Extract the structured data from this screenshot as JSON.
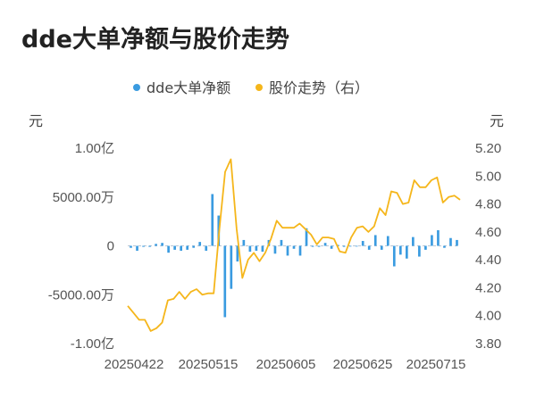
{
  "chart_data": {
    "type": "bar+line",
    "title": "dde大单净额与股价走势",
    "legend": {
      "position": "top-center",
      "items": [
        {
          "name": "dde大单净额",
          "color": "#3a9be0"
        },
        {
          "name": "股价走势（右）",
          "color": "#f5b61b"
        }
      ]
    },
    "y_left": {
      "unit": "元",
      "range": [
        -10000,
        10000
      ],
      "ticks": [
        {
          "value": 10000,
          "label": "1.00亿"
        },
        {
          "value": 5000,
          "label": "5000.00万"
        },
        {
          "value": 0,
          "label": "0"
        },
        {
          "value": -5000,
          "label": "-5000.00万"
        },
        {
          "value": -10000,
          "label": "-1.00亿"
        }
      ]
    },
    "y_right": {
      "unit": "元",
      "range": [
        3.8,
        5.2
      ],
      "ticks": [
        "5.20",
        "5.00",
        "4.80",
        "4.60",
        "4.40",
        "4.20",
        "4.00",
        "3.80"
      ]
    },
    "x_tick_labels": [
      "20250422",
      "20250515",
      "20250605",
      "20250625",
      "20250715"
    ],
    "x_tick_indices": [
      0,
      16,
      32,
      48,
      64
    ],
    "bars": {
      "name": "dde大单净额",
      "unit": "万元",
      "values": [
        -200,
        -500,
        -100,
        -100,
        200,
        300,
        -700,
        -400,
        -500,
        -400,
        -200,
        400,
        -500,
        5300,
        3100,
        -7300,
        -4400,
        -1600,
        600,
        -600,
        -500,
        -600,
        600,
        -800,
        600,
        -1000,
        -300,
        -1000,
        1800,
        -100,
        -100,
        300,
        -300,
        100,
        -100,
        0,
        0,
        500,
        -400,
        1100,
        -400,
        1000,
        -2100,
        -900,
        -1300,
        900,
        -1100,
        -400,
        1100,
        1600,
        -200,
        800,
        600
      ]
    },
    "line": {
      "name": "股价走势（右）",
      "unit": "元",
      "values": [
        4.07,
        4.02,
        3.97,
        3.97,
        3.89,
        3.91,
        3.95,
        4.11,
        4.12,
        4.17,
        4.12,
        4.17,
        4.19,
        4.15,
        4.16,
        4.16,
        4.62,
        5.03,
        5.12,
        4.62,
        4.27,
        4.4,
        4.45,
        4.39,
        4.45,
        4.55,
        4.68,
        4.63,
        4.63,
        4.63,
        4.66,
        4.62,
        4.58,
        4.51,
        4.56,
        4.56,
        4.55,
        4.46,
        4.45,
        4.56,
        4.63,
        4.64,
        4.6,
        4.64,
        4.77,
        4.72,
        4.89,
        4.88,
        4.8,
        4.81,
        4.97,
        4.92,
        4.92,
        4.97,
        4.99,
        4.81,
        4.85,
        4.86,
        4.83
      ]
    }
  }
}
